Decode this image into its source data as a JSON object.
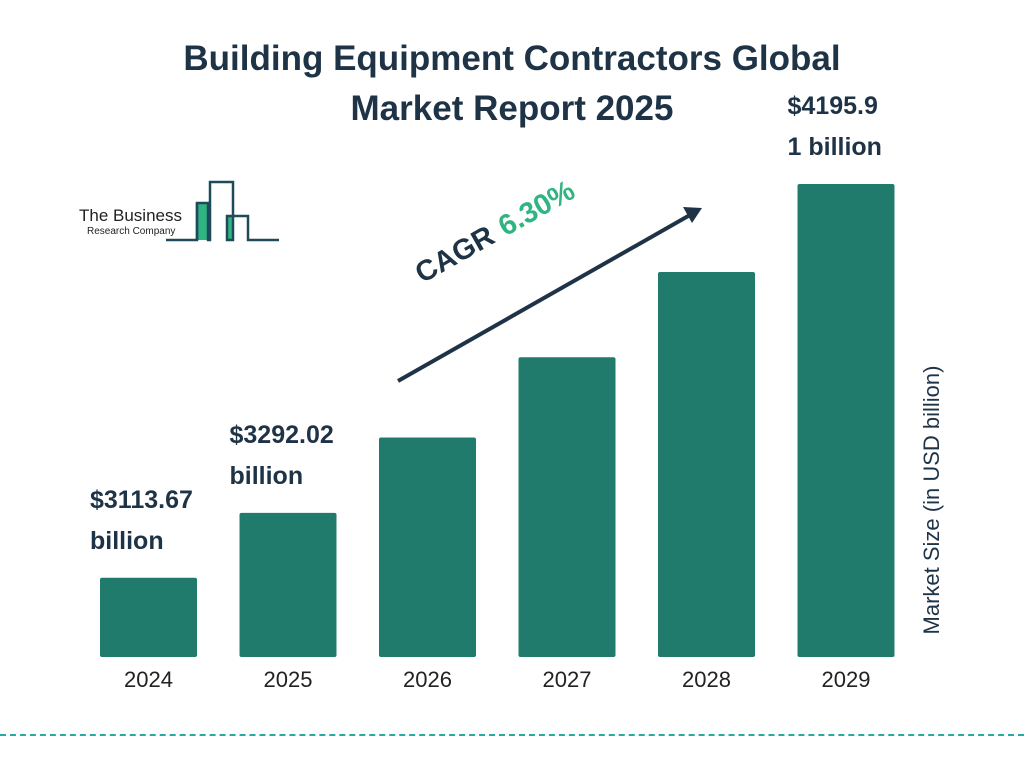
{
  "chart_data": {
    "type": "bar",
    "title": "Building Equipment Contractors Global Market Report 2025",
    "title_lines": [
      "Building Equipment Contractors Global",
      "Market Report 2025"
    ],
    "ylabel": "Market Size (in USD billion)",
    "categories": [
      "2024",
      "2025",
      "2026",
      "2027",
      "2028",
      "2029"
    ],
    "values": [
      3113.67,
      3292.02,
      3499.4,
      3719.9,
      3954.2,
      4195.91
    ],
    "data_labels": [
      {
        "index": 0,
        "lines": [
          "$3113.67",
          "billion"
        ]
      },
      {
        "index": 1,
        "lines": [
          "$3292.02",
          "billion"
        ]
      },
      {
        "index": 5,
        "lines": [
          "$4195.9",
          "1 billion"
        ]
      }
    ],
    "ylim": [
      2896,
      4196
    ],
    "grid": false,
    "annotation": {
      "label": "CAGR",
      "value": "6.30%"
    },
    "colors": {
      "bar": "#217b6c",
      "text": "#1f3347",
      "accent": "#2fb482",
      "divider": "#2aa9a0"
    }
  },
  "logo": {
    "line1": "The Business",
    "line2": "Research Company"
  }
}
